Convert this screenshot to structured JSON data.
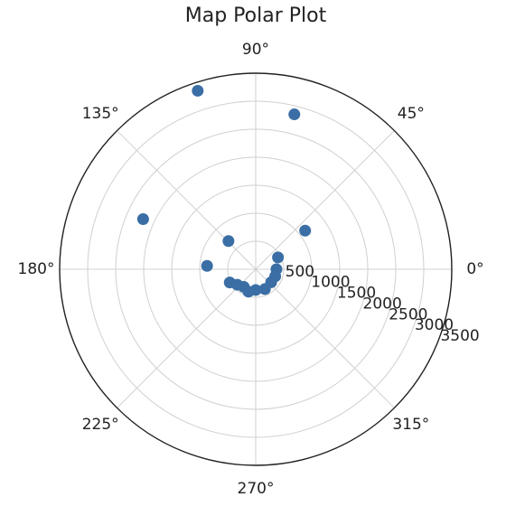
{
  "chart_data": {
    "type": "scatter",
    "projection": "polar",
    "title": "Map Polar Plot",
    "angle_tick_labels": [
      "0°",
      "45°",
      "90°",
      "135°",
      "180°",
      "225°",
      "270°",
      "315°"
    ],
    "angle_ticks_deg": [
      0,
      45,
      90,
      135,
      180,
      225,
      270,
      315
    ],
    "radial_tick_labels": [
      "500",
      "1000",
      "1500",
      "2000",
      "2500",
      "3000",
      "3500"
    ],
    "radial_ticks": [
      500,
      1000,
      1500,
      2000,
      2500,
      3000,
      3500
    ],
    "rlim": [
      0,
      3500
    ],
    "grid": true,
    "marker_color": "#3a6ea5",
    "points": [
      {
        "theta_deg": 108,
        "r": 3350
      },
      {
        "theta_deg": 76,
        "r": 2850
      },
      {
        "theta_deg": 38,
        "r": 1120
      },
      {
        "theta_deg": 156,
        "r": 2200
      },
      {
        "theta_deg": 134,
        "r": 700
      },
      {
        "theta_deg": 176,
        "r": 870
      },
      {
        "theta_deg": 207,
        "r": 520
      },
      {
        "theta_deg": 220,
        "r": 430
      },
      {
        "theta_deg": 236,
        "r": 380
      },
      {
        "theta_deg": 252,
        "r": 420
      },
      {
        "theta_deg": 270,
        "r": 370
      },
      {
        "theta_deg": 295,
        "r": 390
      },
      {
        "theta_deg": 320,
        "r": 360
      },
      {
        "theta_deg": 340,
        "r": 370
      },
      {
        "theta_deg": 0,
        "r": 370
      },
      {
        "theta_deg": 28,
        "r": 450
      }
    ]
  }
}
